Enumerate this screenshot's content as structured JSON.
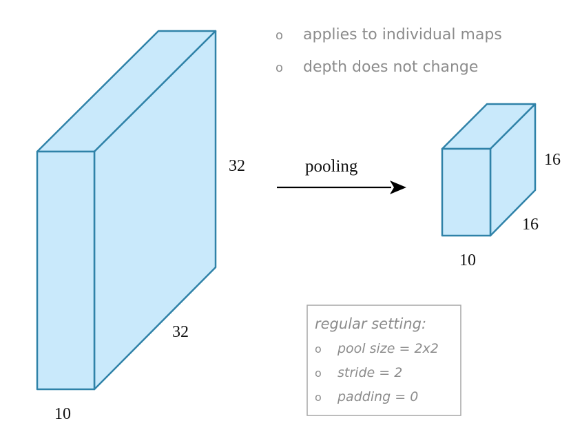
{
  "notes": {
    "bullet": "o",
    "items": [
      "applies to individual maps",
      "depth does not change"
    ]
  },
  "input_volume": {
    "height_label": "32",
    "width_label": "32",
    "depth_label": "10"
  },
  "operation": {
    "label": "pooling"
  },
  "output_volume": {
    "height_label": "16",
    "width_label": "16",
    "depth_label": "10"
  },
  "settings": {
    "heading": "regular setting:",
    "bullet": "o",
    "items": [
      "pool size = 2x2",
      "stride = 2",
      "padding = 0"
    ]
  },
  "colors": {
    "box_fill": "#c9e9fb",
    "box_stroke": "#2f82a8",
    "arrow": "#000000",
    "note_text": "#8c8c8c",
    "label_text": "#111111",
    "settings_border": "#a6a6a6"
  }
}
